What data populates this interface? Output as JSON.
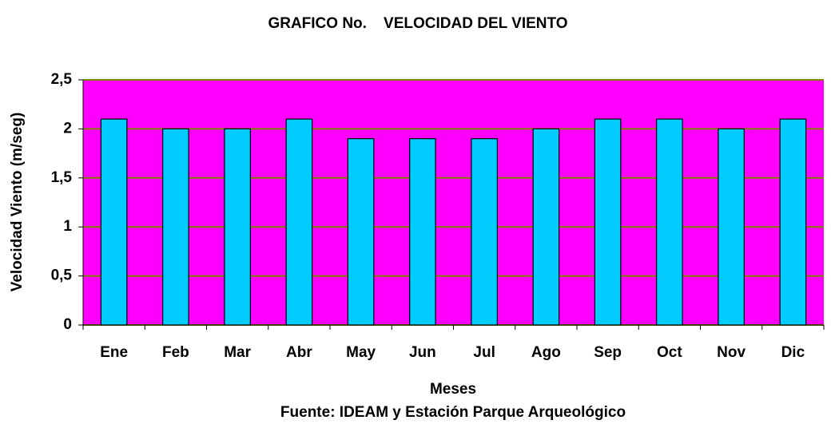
{
  "chart_data": {
    "type": "bar",
    "title": "GRAFICO No.    VELOCIDAD DEL VIENTO",
    "x_label": "Meses",
    "y_label": "Velocidad Viento (m/seg)",
    "source": "Fuente: IDEAM y Estación Parque Arqueológico",
    "categories": [
      "Ene",
      "Feb",
      "Mar",
      "Abr",
      "May",
      "Jun",
      "Jul",
      "Ago",
      "Sep",
      "Oct",
      "Nov",
      "Dic"
    ],
    "values": [
      2.1,
      2.0,
      2.0,
      2.1,
      1.9,
      1.9,
      1.9,
      2.0,
      2.1,
      2.1,
      2.0,
      2.1
    ],
    "color": "#00ccff",
    "plot_background": "#ff00ff",
    "grid_color": "#808000",
    "ylim": [
      0,
      2.5
    ],
    "yticks": [
      0,
      {
        "value": 0.5,
        "label": "0,5"
      },
      1,
      {
        "value": 1.5,
        "label": "1,5"
      },
      2,
      {
        "value": 2.5,
        "label": "2,5"
      }
    ],
    "grid": true
  }
}
